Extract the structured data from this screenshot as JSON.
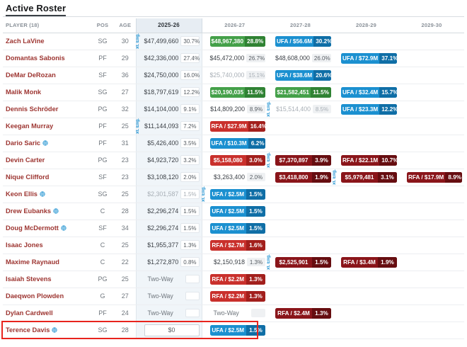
{
  "title": "Active Roster",
  "columns": [
    "PLAYER (18)",
    "POS",
    "AGE",
    "2025-26",
    "2026-27",
    "2027-28",
    "2028-29",
    "2029-30"
  ],
  "labels": {
    "ext_eligible": "xt. Elig.",
    "two_way": "Two-Way"
  },
  "colors": {
    "option_green": "#44a049",
    "option_green_dark": "#2f8233",
    "ufa_blue": "#1b90d0",
    "ufa_blue_dark": "#0f6ea6",
    "rfa_red": "#c9302c",
    "rfa_red_dark": "#a21f1c",
    "team_dark_red": "#8a151a",
    "team_dark_red_dark": "#660d10",
    "player_link": "#9d3531",
    "highlight_box": "#e8241d"
  },
  "annotation": {
    "type": "red-box",
    "row": "Terence Davis"
  },
  "players": [
    {
      "name": "Zach LaVine",
      "pos": "SG",
      "age": "30",
      "globe": false,
      "years": [
        {
          "type": "plain",
          "value": "$47,499,660",
          "pct": "30.7%",
          "ext": true
        },
        {
          "type": "badge",
          "color": "green",
          "value": "$48,967,380",
          "pct": "28.8%"
        },
        {
          "type": "badge",
          "color": "blue",
          "value": "UFA / $56.6M",
          "pct": "30.2%"
        },
        {
          "type": "empty"
        },
        {
          "type": "empty"
        }
      ]
    },
    {
      "name": "Domantas Sabonis",
      "pos": "PF",
      "age": "29",
      "globe": false,
      "years": [
        {
          "type": "plain",
          "value": "$42,336,000",
          "pct": "27.4%"
        },
        {
          "type": "plain",
          "value": "$45,472,000",
          "pct": "26.7%"
        },
        {
          "type": "plain",
          "value": "$48,608,000",
          "pct": "26.0%"
        },
        {
          "type": "badge",
          "color": "blue",
          "value": "UFA / $72.9M",
          "pct": "37.1%"
        },
        {
          "type": "empty"
        }
      ]
    },
    {
      "name": "DeMar DeRozan",
      "pos": "SF",
      "age": "36",
      "globe": false,
      "years": [
        {
          "type": "plain",
          "value": "$24,750,000",
          "pct": "16.0%"
        },
        {
          "type": "muted",
          "value": "$25,740,000",
          "pct": "15.1%"
        },
        {
          "type": "badge",
          "color": "blue",
          "value": "UFA / $38.6M",
          "pct": "20.6%"
        },
        {
          "type": "empty"
        },
        {
          "type": "empty"
        }
      ]
    },
    {
      "name": "Malik Monk",
      "pos": "SG",
      "age": "27",
      "globe": false,
      "years": [
        {
          "type": "plain",
          "value": "$18,797,619",
          "pct": "12.2%"
        },
        {
          "type": "badge",
          "color": "green",
          "value": "$20,190,035",
          "pct": "11.5%"
        },
        {
          "type": "badge",
          "color": "green",
          "value": "$21,582,451",
          "pct": "11.5%"
        },
        {
          "type": "badge",
          "color": "blue",
          "value": "UFA / $32.4M",
          "pct": "15.7%"
        },
        {
          "type": "empty"
        }
      ]
    },
    {
      "name": "Dennis Schröder",
      "pos": "PG",
      "age": "32",
      "globe": false,
      "years": [
        {
          "type": "plain",
          "value": "$14,104,000",
          "pct": "9.1%"
        },
        {
          "type": "plain",
          "value": "$14,809,200",
          "pct": "8.9%"
        },
        {
          "type": "muted",
          "value": "$15,514,400",
          "pct": "8.5%",
          "ext": true
        },
        {
          "type": "badge",
          "color": "blue",
          "value": "UFA / $23.3M",
          "pct": "12.2%"
        },
        {
          "type": "empty"
        }
      ]
    },
    {
      "name": "Keegan Murray",
      "pos": "PF",
      "age": "25",
      "globe": false,
      "years": [
        {
          "type": "plain",
          "value": "$11,144,093",
          "pct": "7.2%",
          "ext": true
        },
        {
          "type": "badge",
          "color": "red",
          "value": "RFA / $27.9M",
          "pct": "16.4%"
        },
        {
          "type": "empty"
        },
        {
          "type": "empty"
        },
        {
          "type": "empty"
        }
      ]
    },
    {
      "name": "Dario Saric",
      "pos": "PF",
      "age": "31",
      "globe": true,
      "years": [
        {
          "type": "plain",
          "value": "$5,426,400",
          "pct": "3.5%"
        },
        {
          "type": "badge",
          "color": "blue",
          "value": "UFA / $10.3M",
          "pct": "6.2%"
        },
        {
          "type": "empty"
        },
        {
          "type": "empty"
        },
        {
          "type": "empty"
        }
      ]
    },
    {
      "name": "Devin Carter",
      "pos": "PG",
      "age": "23",
      "globe": false,
      "years": [
        {
          "type": "plain",
          "value": "$4,923,720",
          "pct": "3.2%"
        },
        {
          "type": "badge",
          "color": "red",
          "value": "$5,158,080",
          "pct": "3.0%"
        },
        {
          "type": "badge",
          "color": "darkred",
          "value": "$7,370,897",
          "pct": "3.9%",
          "ext": true
        },
        {
          "type": "badge",
          "color": "darkred",
          "value": "RFA / $22.1M",
          "pct": "10.7%"
        },
        {
          "type": "empty"
        }
      ]
    },
    {
      "name": "Nique Clifford",
      "pos": "SF",
      "age": "23",
      "globe": false,
      "years": [
        {
          "type": "plain",
          "value": "$3,108,120",
          "pct": "2.0%"
        },
        {
          "type": "plain",
          "value": "$3,263,400",
          "pct": "2.0%"
        },
        {
          "type": "badge",
          "color": "darkred",
          "value": "$3,418,800",
          "pct": "1.9%"
        },
        {
          "type": "badge",
          "color": "darkred",
          "value": "$5,979,481",
          "pct": "3.1%",
          "ext": true
        },
        {
          "type": "badge",
          "color": "darkred",
          "value": "RFA / $17.9M",
          "pct": "8.9%"
        }
      ]
    },
    {
      "name": "Keon Ellis",
      "pos": "SG",
      "age": "25",
      "globe": true,
      "years": [
        {
          "type": "muted",
          "value": "$2,301,587",
          "pct": "1.5%"
        },
        {
          "type": "badge",
          "color": "blue",
          "value": "UFA / $2.5M",
          "pct": "1.5%",
          "ext": true
        },
        {
          "type": "empty"
        },
        {
          "type": "empty"
        },
        {
          "type": "empty"
        }
      ]
    },
    {
      "name": "Drew Eubanks",
      "pos": "C",
      "age": "28",
      "globe": true,
      "years": [
        {
          "type": "plain",
          "value": "$2,296,274",
          "pct": "1.5%"
        },
        {
          "type": "badge",
          "color": "blue",
          "value": "UFA / $2.5M",
          "pct": "1.5%"
        },
        {
          "type": "empty"
        },
        {
          "type": "empty"
        },
        {
          "type": "empty"
        }
      ]
    },
    {
      "name": "Doug McDermott",
      "pos": "SF",
      "age": "34",
      "globe": true,
      "years": [
        {
          "type": "plain",
          "value": "$2,296,274",
          "pct": "1.5%"
        },
        {
          "type": "badge",
          "color": "blue",
          "value": "UFA / $2.5M",
          "pct": "1.5%"
        },
        {
          "type": "empty"
        },
        {
          "type": "empty"
        },
        {
          "type": "empty"
        }
      ]
    },
    {
      "name": "Isaac Jones",
      "pos": "C",
      "age": "25",
      "globe": false,
      "years": [
        {
          "type": "plain",
          "value": "$1,955,377",
          "pct": "1.3%"
        },
        {
          "type": "badge",
          "color": "red",
          "value": "RFA / $2.7M",
          "pct": "1.6%"
        },
        {
          "type": "empty"
        },
        {
          "type": "empty"
        },
        {
          "type": "empty"
        }
      ]
    },
    {
      "name": "Maxime Raynaud",
      "pos": "C",
      "age": "22",
      "globe": false,
      "years": [
        {
          "type": "plain",
          "value": "$1,272,870",
          "pct": "0.8%"
        },
        {
          "type": "plain",
          "value": "$2,150,918",
          "pct": "1.3%"
        },
        {
          "type": "badge",
          "color": "darkred",
          "value": "$2,525,901",
          "pct": "1.5%",
          "ext": true
        },
        {
          "type": "badge",
          "color": "darkred",
          "value": "RFA / $3.4M",
          "pct": "1.9%"
        },
        {
          "type": "empty"
        }
      ]
    },
    {
      "name": "Isaiah Stevens",
      "pos": "PG",
      "age": "25",
      "globe": false,
      "years": [
        {
          "type": "twoway",
          "value": "Two-Way"
        },
        {
          "type": "badge",
          "color": "red",
          "value": "RFA / $2.2M",
          "pct": "1.3%"
        },
        {
          "type": "empty"
        },
        {
          "type": "empty"
        },
        {
          "type": "empty"
        }
      ]
    },
    {
      "name": "Daeqwon Plowden",
      "pos": "G",
      "age": "27",
      "globe": false,
      "years": [
        {
          "type": "twoway",
          "value": "Two-Way"
        },
        {
          "type": "badge",
          "color": "red",
          "value": "RFA / $2.2M",
          "pct": "1.3%"
        },
        {
          "type": "empty"
        },
        {
          "type": "empty"
        },
        {
          "type": "empty"
        }
      ]
    },
    {
      "name": "Dylan Cardwell",
      "pos": "PF",
      "age": "24",
      "globe": false,
      "years": [
        {
          "type": "twoway",
          "value": "Two-Way"
        },
        {
          "type": "twoway",
          "value": "Two-Way"
        },
        {
          "type": "badge",
          "color": "darkred",
          "value": "RFA / $2.4M",
          "pct": "1.3%"
        },
        {
          "type": "empty"
        },
        {
          "type": "empty"
        }
      ]
    },
    {
      "name": "Terence Davis",
      "pos": "SG",
      "age": "28",
      "globe": true,
      "years": [
        {
          "type": "input",
          "value": "$0"
        },
        {
          "type": "badge",
          "color": "blue",
          "value": "UFA / $2.5M",
          "pct": "1.5%"
        },
        {
          "type": "empty"
        },
        {
          "type": "empty"
        },
        {
          "type": "empty"
        }
      ]
    }
  ]
}
